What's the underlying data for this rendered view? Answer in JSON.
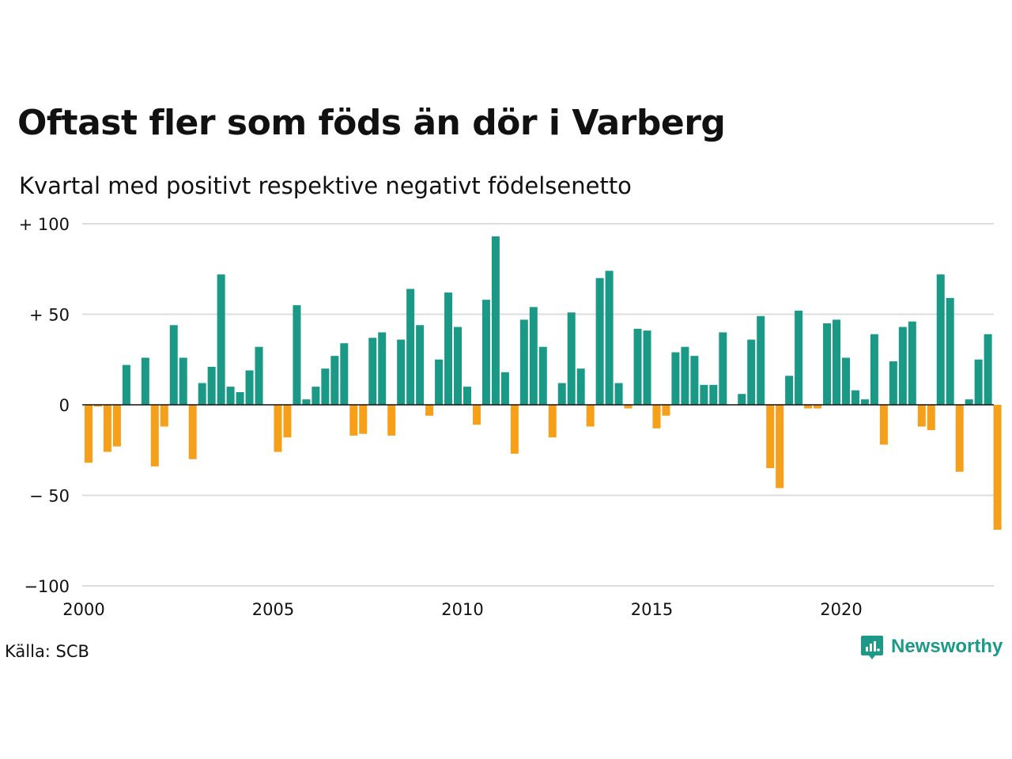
{
  "title": "Oftast fler som föds än dör i Varberg",
  "subtitle": "Kvartal med positivt respektive negativt födelsenetto",
  "source": "Källa: SCB",
  "brand": {
    "name": "Newsworthy",
    "icon": "newsworthy-logo-icon",
    "color": "#1c9a87"
  },
  "colors": {
    "positive": "#1a9a86",
    "negative": "#f6a01a",
    "grid": "#dddddd",
    "zero_line": "#111111"
  },
  "chart_data": {
    "type": "bar",
    "x_start": 2000,
    "quarters_per_year": 4,
    "ylim": [
      -100,
      100
    ],
    "yticks": [
      100,
      50,
      0,
      -50,
      -100
    ],
    "ytick_labels": [
      "+ 100",
      "+  50",
      "0",
      "− 50",
      "−100"
    ],
    "xticks": [
      2000,
      2005,
      2010,
      2015,
      2020
    ],
    "xtick_labels": [
      "2000",
      "2005",
      "2010",
      "2015",
      "2020"
    ],
    "grid": true,
    "values": [
      -32,
      -1,
      -26,
      -23,
      22,
      0,
      26,
      -34,
      -12,
      44,
      26,
      -30,
      12,
      21,
      72,
      10,
      7,
      19,
      32,
      0,
      -26,
      -18,
      55,
      3,
      10,
      20,
      27,
      34,
      -17,
      -16,
      37,
      40,
      -17,
      36,
      64,
      44,
      -6,
      25,
      62,
      43,
      10,
      -11,
      58,
      93,
      18,
      -27,
      47,
      54,
      32,
      -18,
      12,
      51,
      20,
      -12,
      70,
      74,
      12,
      -2,
      42,
      41,
      -13,
      -6,
      29,
      32,
      27,
      11,
      11,
      40,
      0,
      6,
      36,
      49,
      -35,
      -46,
      16,
      52,
      -2,
      -2,
      45,
      47,
      26,
      8,
      3,
      39,
      -22,
      24,
      43,
      46,
      -12,
      -14,
      72,
      59,
      -37,
      3,
      25,
      39,
      -69
    ]
  }
}
